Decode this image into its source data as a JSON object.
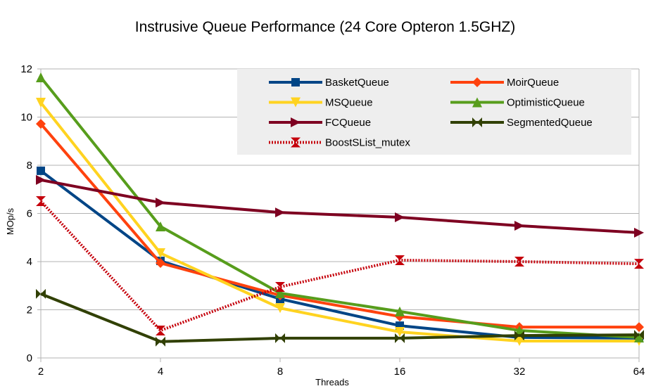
{
  "chart_data": {
    "type": "line",
    "title": "Instrusive Queue Performance (24 Core Opteron 1.5GHZ)",
    "xlabel": "Threads",
    "ylabel": "MOp/s",
    "x_scale": "log2",
    "categories": [
      "2",
      "4",
      "8",
      "16",
      "32",
      "64"
    ],
    "x": [
      2,
      4,
      8,
      16,
      32,
      64
    ],
    "ylim": [
      0,
      12
    ],
    "yticks": [
      "0",
      "2",
      "4",
      "6",
      "8",
      "10",
      "12"
    ],
    "ytick_values": [
      0,
      2,
      4,
      6,
      8,
      10,
      12
    ],
    "grid": true,
    "legend_position": "top-right",
    "series": [
      {
        "name": "BasketQueue",
        "color": "#004586",
        "marker": "square",
        "dashed": false,
        "values": [
          7.77,
          4.03,
          2.45,
          1.34,
          0.85,
          0.82
        ]
      },
      {
        "name": "MoirQueue",
        "color": "#ff420e",
        "marker": "diamond",
        "dashed": false,
        "values": [
          9.72,
          3.94,
          2.6,
          1.72,
          1.28,
          1.28
        ]
      },
      {
        "name": "MSQueue",
        "color": "#ffd320",
        "marker": "triangle-down",
        "dashed": false,
        "values": [
          10.6,
          4.35,
          2.07,
          1.08,
          0.7,
          0.7
        ]
      },
      {
        "name": "OptimisticQueue",
        "color": "#579d1c",
        "marker": "triangle-up",
        "dashed": false,
        "values": [
          11.65,
          5.46,
          2.69,
          1.93,
          1.14,
          0.85
        ]
      },
      {
        "name": "FCQueue",
        "color": "#7e0021",
        "marker": "triangle-right",
        "dashed": false,
        "values": [
          7.39,
          6.45,
          6.04,
          5.84,
          5.49,
          5.2
        ]
      },
      {
        "name": "SegmentedQueue",
        "color": "#314004",
        "marker": "bowtie",
        "dashed": false,
        "values": [
          2.66,
          0.68,
          0.82,
          0.82,
          0.93,
          0.96
        ]
      },
      {
        "name": "BoostSList_mutex",
        "color": "#c5000b",
        "marker": "hourglass",
        "dashed": true,
        "values": [
          6.51,
          1.14,
          2.95,
          4.06,
          4.0,
          3.91
        ]
      }
    ]
  }
}
